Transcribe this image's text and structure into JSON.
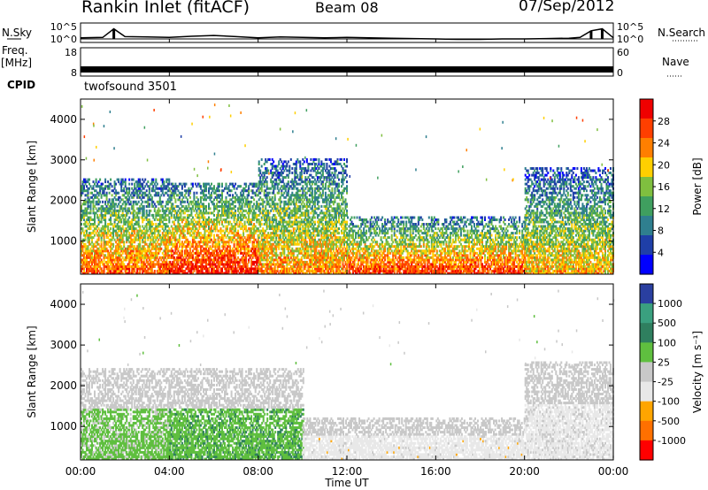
{
  "header": {
    "station": "Rankin Inlet (fitACF)",
    "beam": "Beam 08",
    "date": "07/Sep/2012"
  },
  "strip_labels": {
    "nsky": "N.Sky",
    "nsearch": "N.Search",
    "freq": "Freq.",
    "freq_unit": "[MHz]",
    "nave": "Nave",
    "cpid": "CPID",
    "cpid_value": "twofsound 3501"
  },
  "colors": {
    "power_scale": [
      "#0000ff",
      "#1f3fa8",
      "#2f7f8f",
      "#3f9f5f",
      "#7fbf3f",
      "#ffcf00",
      "#ff7f00",
      "#ff3f00",
      "#ef0000"
    ],
    "velocity_scale": [
      "#2a3fa0",
      "#3aa07f",
      "#2f7f5f",
      "#5fbf3f",
      "#c8c8c8",
      "#e8e8e8",
      "#ffa500",
      "#ff7000",
      "#ff0000"
    ],
    "gray": "#c8c8c8"
  },
  "chart_data": [
    {
      "type": "line",
      "panel": "noise",
      "left_label": "N.Sky",
      "right_label": "N.Search",
      "left_ticks": [
        "10^5",
        "10^0"
      ],
      "right_ticks": [
        "10^5",
        "10^0"
      ],
      "ylim": [
        0,
        5
      ],
      "x": [
        0,
        1,
        1.5,
        2,
        3,
        4,
        5,
        6,
        7,
        8,
        9,
        10,
        11,
        12,
        13,
        14,
        15,
        16,
        17,
        18,
        19,
        20,
        21,
        22,
        22.5,
        23,
        23.5,
        24
      ],
      "series": [
        {
          "values": [
            1.2,
            1.3,
            3.5,
            1.5,
            1.4,
            1.3,
            1.6,
            1.8,
            1.5,
            1.2,
            1.4,
            1.3,
            1.2,
            1.3,
            1.2,
            1.1,
            1.0,
            0.9,
            0.8,
            0.8,
            0.9,
            0.9,
            1.0,
            1.1,
            1.3,
            3.0,
            3.5,
            1.2
          ]
        }
      ]
    },
    {
      "type": "line",
      "panel": "frequency",
      "left_label": "Freq.",
      "left_unit": "[MHz]",
      "right_label": "Nave",
      "left_ticks": [
        "18",
        "8"
      ],
      "right_ticks": [
        "60",
        "0"
      ],
      "ylim": [
        8,
        18
      ],
      "x": [
        0,
        24
      ],
      "series": [
        {
          "values": [
            10.5,
            10.5
          ]
        }
      ]
    },
    {
      "type": "heatmap",
      "panel": "power",
      "xlabel": "",
      "ylabel": "Slant Range [km]",
      "colorbar_label": "Power [dB]",
      "colorbar_ticks": [
        "4",
        "8",
        "12",
        "16",
        "20",
        "24",
        "28"
      ],
      "clim": [
        0,
        30
      ],
      "xlim": [
        0,
        24
      ],
      "ylim": [
        180,
        4500
      ],
      "yticks": [
        "1000",
        "2000",
        "3000",
        "4000"
      ],
      "description_bands": [
        {
          "t_start": 0,
          "t_end": 4,
          "r_start": 180,
          "r_end": 2500,
          "peak_db": 24
        },
        {
          "t_start": 4,
          "t_end": 8,
          "r_start": 180,
          "r_end": 2400,
          "peak_db": 28
        },
        {
          "t_start": 8,
          "t_end": 12,
          "r_start": 180,
          "r_end": 3000,
          "peak_db": 22
        },
        {
          "t_start": 12,
          "t_end": 20,
          "r_start": 180,
          "r_end": 1600,
          "peak_db": 26
        },
        {
          "t_start": 20,
          "t_end": 24,
          "r_start": 180,
          "r_end": 2800,
          "peak_db": 20
        }
      ]
    },
    {
      "type": "heatmap",
      "panel": "velocity",
      "xlabel": "Time UT",
      "ylabel": "Slant Range [km]",
      "colorbar_label": "Velocity [m s⁻¹]",
      "colorbar_ticks": [
        "1000",
        "500",
        "100",
        "25",
        "-25",
        "-100",
        "-500",
        "-1000"
      ],
      "clim": [
        -1000,
        1000
      ],
      "xlim": [
        0,
        24
      ],
      "ylim": [
        180,
        4500
      ],
      "yticks": [
        "1000",
        "2000",
        "3000",
        "4000"
      ],
      "xticks": [
        "00:00",
        "04:00",
        "08:00",
        "12:00",
        "16:00",
        "20:00",
        "00:00"
      ],
      "description_bands": [
        {
          "t_start": 0,
          "t_end": 4,
          "r_start": 180,
          "r_end": 2400,
          "velocity": 150
        },
        {
          "t_start": 4,
          "t_end": 10,
          "r_start": 180,
          "r_end": 2400,
          "velocity": 250
        },
        {
          "t_start": 10,
          "t_end": 20,
          "r_start": 180,
          "r_end": 1200,
          "velocity": -200
        },
        {
          "t_start": 20,
          "t_end": 24,
          "r_start": 180,
          "r_end": 2600,
          "velocity": -150
        }
      ]
    }
  ]
}
